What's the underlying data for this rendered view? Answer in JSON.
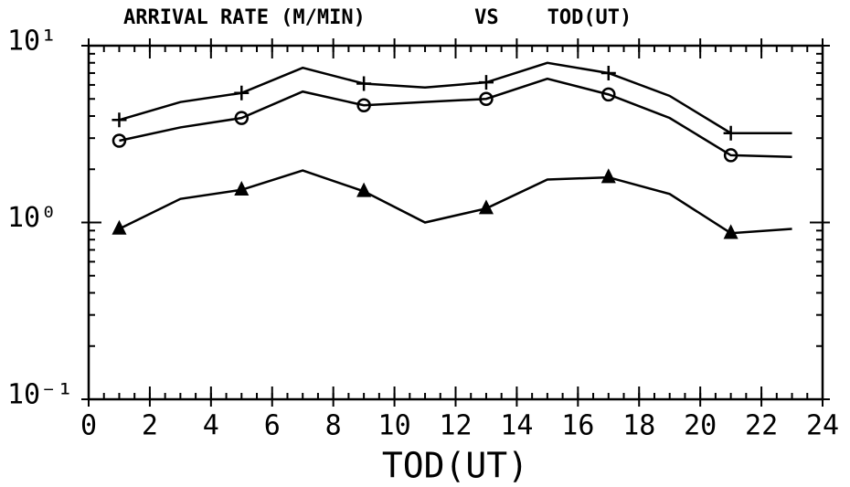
{
  "chart_data": {
    "type": "line",
    "title": "ARRIVAL RATE (M/MIN)         VS    TOD(UT)",
    "x_label": "TOD(UT)",
    "x": [
      1,
      3,
      5,
      7,
      9,
      11,
      13,
      15,
      17,
      19,
      21,
      23
    ],
    "series": [
      {
        "marker": "plus",
        "color": "#000000",
        "values": [
          3.8,
          4.8,
          5.4,
          7.5,
          6.1,
          5.8,
          6.2,
          8.0,
          7.0,
          5.2,
          3.2,
          3.2
        ]
      },
      {
        "marker": "circle",
        "color": "#000000",
        "values": [
          2.9,
          3.45,
          3.9,
          5.5,
          4.6,
          4.8,
          5.0,
          6.5,
          5.3,
          3.9,
          2.4,
          2.35
        ]
      },
      {
        "marker": "triangle",
        "color": "#000000",
        "values": [
          0.92,
          1.36,
          1.53,
          1.97,
          1.5,
          1.0,
          1.2,
          1.75,
          1.8,
          1.45,
          0.87,
          0.92
        ]
      }
    ],
    "xlim": [
      0,
      24
    ],
    "xticks": [
      0,
      2,
      4,
      6,
      8,
      10,
      12,
      14,
      16,
      18,
      20,
      22,
      24
    ],
    "ylim": [
      0.1,
      10
    ],
    "log_y": true,
    "yticks": [
      {
        "value": 10,
        "label": "10¹"
      },
      {
        "value": 1,
        "label": "10⁰"
      },
      {
        "value": 0.1,
        "label": "10⁻¹"
      }
    ],
    "grid": false
  }
}
